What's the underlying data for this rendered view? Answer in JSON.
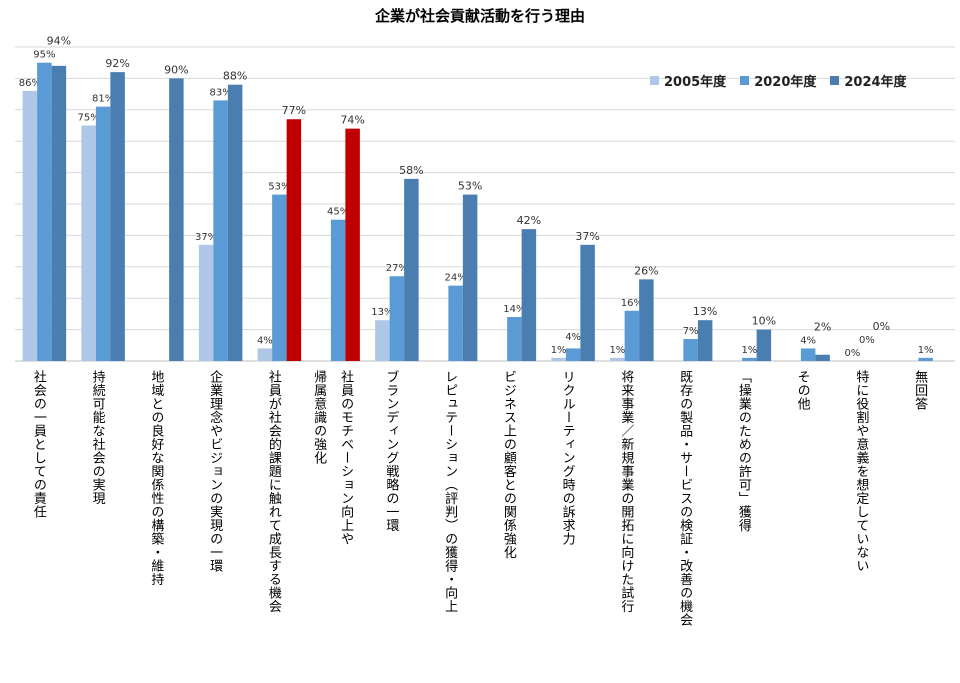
{
  "chart_data": {
    "type": "bar",
    "title": "企業が社会貢献活動を行う理由",
    "categories": [
      [
        "社会の一員としての責任"
      ],
      [
        "持続可能な社会の実現"
      ],
      [
        "地域との良好な関係性の構築・維持"
      ],
      [
        "企業理念やビジョンの実現の一環"
      ],
      [
        "社員が社会的課題に触れて成長する機会"
      ],
      [
        "社員のモチベーション向上や",
        "帰属意識の強化"
      ],
      [
        "ブランディング戦略の一環"
      ],
      [
        "レピュテーション（評判）の獲得・向上"
      ],
      [
        "ビジネス上の顧客との関係強化"
      ],
      [
        "リクルーティング時の訴求力"
      ],
      [
        "将来事業／新規事業の開拓に向けた試行"
      ],
      [
        "既存の製品・サービスの検証・改善の機会"
      ],
      [
        "「操業のための許可」獲得"
      ],
      [
        "その他"
      ],
      [
        "特に役割や意義を想定していない"
      ],
      [
        "無回答"
      ]
    ],
    "series": [
      {
        "name": "2005年度",
        "color": "#aec7e6",
        "values": [
          86,
          75,
          null,
          37,
          4,
          null,
          13,
          null,
          null,
          1,
          1,
          null,
          null,
          null,
          0,
          null
        ]
      },
      {
        "name": "2020年度",
        "color": "#5b9bd5",
        "values": [
          95,
          81,
          null,
          83,
          53,
          45,
          27,
          24,
          14,
          4,
          16,
          7,
          1,
          4,
          0,
          1
        ]
      },
      {
        "name": "2024年度",
        "color": "#4a7eb1",
        "values": [
          94,
          92,
          90,
          88,
          77,
          74,
          58,
          53,
          42,
          37,
          26,
          13,
          10,
          2,
          0,
          null
        ]
      }
    ],
    "highlight": {
      "color": "#c00000",
      "series": "2024年度",
      "categories": [
        4,
        5
      ]
    },
    "value_suffix": "%",
    "ylim": [
      0,
      100
    ],
    "grid": true,
    "legend_position": "top-right"
  }
}
